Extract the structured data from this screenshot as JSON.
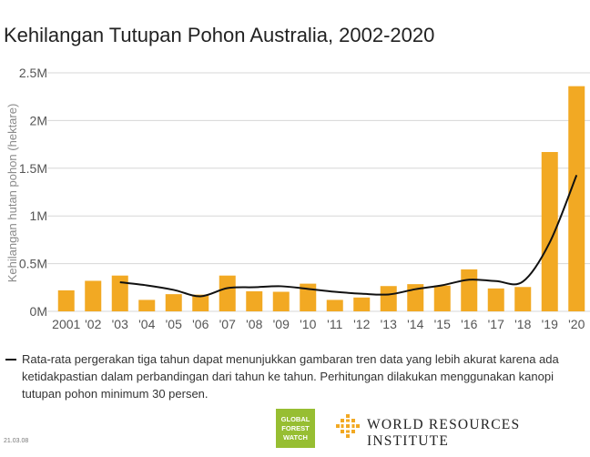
{
  "chart_data": {
    "type": "bar",
    "title": "Kehilangan Tutupan Pohon Australia, 2002-2020",
    "ylabel": "Kehilangan hutan pohon (hektare)",
    "xlabel": "",
    "ylim": [
      0,
      2500000
    ],
    "yticks": [
      {
        "value": 0,
        "label": "0M"
      },
      {
        "value": 500000,
        "label": "0.5M"
      },
      {
        "value": 1000000,
        "label": "1M"
      },
      {
        "value": 1500000,
        "label": "1.5M"
      },
      {
        "value": 2000000,
        "label": "2M"
      },
      {
        "value": 2500000,
        "label": "2.5M"
      }
    ],
    "categories": [
      "2001",
      "'02",
      "'03",
      "'04",
      "'05",
      "'06",
      "'07",
      "'08",
      "'09",
      "'10",
      "'11",
      "'12",
      "'13",
      "'14",
      "'15",
      "'16",
      "'17",
      "'18",
      "'19",
      "'20"
    ],
    "values": [
      220000,
      320000,
      375000,
      120000,
      180000,
      175000,
      375000,
      210000,
      205000,
      290000,
      120000,
      145000,
      265000,
      285000,
      270000,
      440000,
      240000,
      255000,
      1670000,
      2360000
    ],
    "trend": {
      "description": "three-year moving average",
      "values": [
        null,
        null,
        305000,
        272000,
        225000,
        158000,
        243000,
        253000,
        263000,
        235000,
        205000,
        185000,
        177000,
        232000,
        273000,
        332000,
        317000,
        312000,
        722000,
        1428000
      ]
    },
    "grid": true,
    "legend": "bottom-left"
  },
  "legend_note": "Rata-rata pergerakan tiga tahun dapat menunjukkan gambaran tren data yang lebih akurat karena ada ketidakpastian dalam perbandingan dari tahun ke tahun. Perhitungan dilakukan menggunakan kanopi tutupan pohon minimum 30 persen.",
  "logos": {
    "gfw": "GLOBAL FOREST WATCH",
    "gfw_color": "#97be32",
    "wri": "WORLD RESOURCES INSTITUTE",
    "wri_color": "#f2a923"
  },
  "date_stamp": "21.03.08",
  "colors": {
    "bar": "#f2a923",
    "trend": "#111111",
    "grid": "#d7d7d7"
  }
}
